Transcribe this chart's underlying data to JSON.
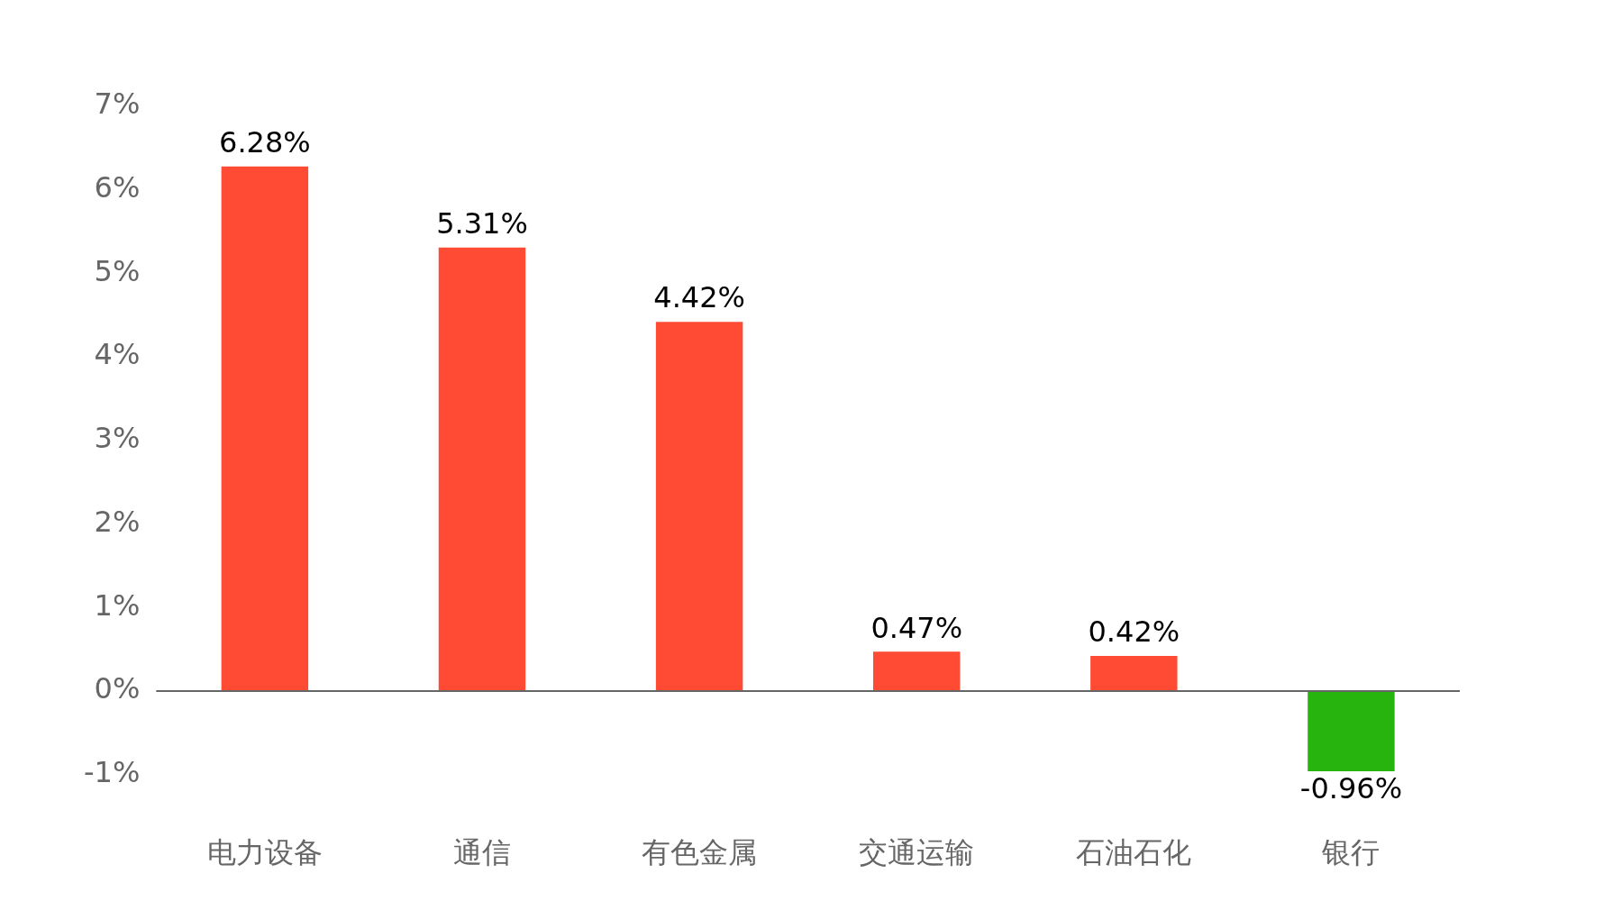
{
  "chart_data": {
    "type": "bar",
    "categories": [
      "电力设备",
      "通信",
      "有色金属",
      "交通运输",
      "石油石化",
      "银行"
    ],
    "values": [
      6.28,
      5.31,
      4.42,
      0.47,
      0.42,
      -0.96
    ],
    "colors": [
      "#ff4b33",
      "#ff4b33",
      "#ff4b33",
      "#ff4b33",
      "#ff4b33",
      "#27b40f"
    ],
    "value_labels": [
      "6.28%",
      "5.31%",
      "4.42%",
      "0.47%",
      "0.42%",
      "-0.96%"
    ],
    "ylim": [
      -1,
      7
    ],
    "yticks": [
      {
        "value": -1,
        "label": "-1%"
      },
      {
        "value": 0,
        "label": "0%"
      },
      {
        "value": 1,
        "label": "1%"
      },
      {
        "value": 2,
        "label": "2%"
      },
      {
        "value": 3,
        "label": "3%"
      },
      {
        "value": 4,
        "label": "4%"
      },
      {
        "value": 5,
        "label": "5%"
      },
      {
        "value": 6,
        "label": "6%"
      },
      {
        "value": 7,
        "label": "7%"
      }
    ],
    "ref_lines": [
      {
        "axis": "y",
        "value": 0,
        "color": "#666666"
      }
    ],
    "grid": false,
    "legend": false
  }
}
